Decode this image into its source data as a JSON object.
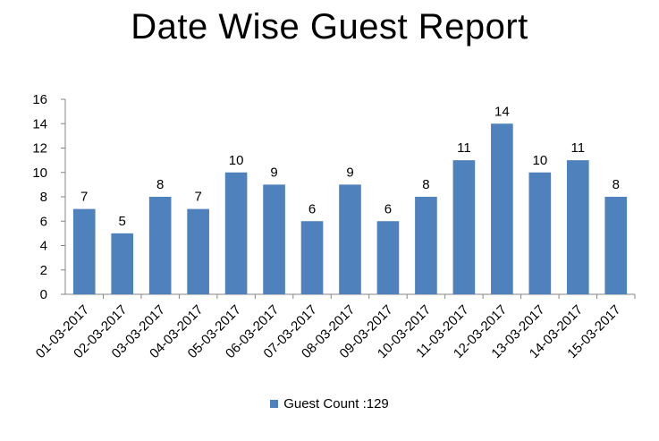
{
  "chart_data": {
    "type": "bar",
    "title": "Date Wise Guest Report",
    "xlabel": "",
    "ylabel": "",
    "categories": [
      "01-03-2017",
      "02-03-2017",
      "03-03-2017",
      "04-03-2017",
      "05-03-2017",
      "06-03-2017",
      "07-03-2017",
      "08-03-2017",
      "09-03-2017",
      "10-03-2017",
      "11-03-2017",
      "12-03-2017",
      "13-03-2017",
      "14-03-2017",
      "15-03-2017"
    ],
    "series": [
      {
        "name": "Guest Count :129",
        "values": [
          7,
          5,
          8,
          7,
          10,
          9,
          6,
          9,
          6,
          8,
          11,
          14,
          10,
          11,
          8
        ]
      }
    ],
    "ylim": [
      0,
      16
    ],
    "yticks": [
      0,
      2,
      4,
      6,
      8,
      10,
      12,
      14,
      16
    ],
    "grid": false,
    "data_labels": true,
    "legend_position": "bottom",
    "bar_color": "#4f81bd"
  }
}
